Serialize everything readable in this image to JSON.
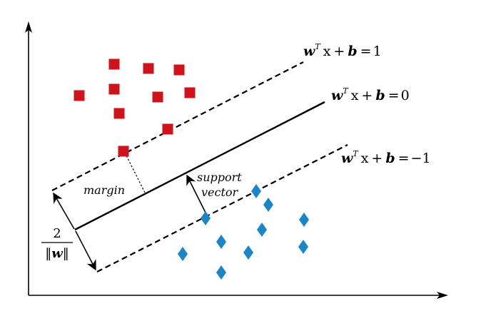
{
  "colors": {
    "class_positive": "#d0121b",
    "class_negative": "#1a86c8",
    "lines": "#000000"
  },
  "equations": {
    "upper": {
      "w": "w",
      "t": "T",
      "x": "x",
      "plus": "+",
      "b": "b",
      "eq": "=",
      "rhs": "1"
    },
    "middle": {
      "w": "w",
      "t": "T",
      "x": "x",
      "plus": "+",
      "b": "b",
      "eq": "=",
      "rhs": "0"
    },
    "lower": {
      "w": "w",
      "t": "T",
      "x": "x",
      "plus": "+",
      "b": "b",
      "eq": "=",
      "rhs": "−1"
    }
  },
  "labels": {
    "margin": "margin",
    "support_line1": "support",
    "support_line2": "vector",
    "frac_numerator": "2",
    "frac_denominator_open": "‖",
    "frac_denominator_w": "w",
    "frac_denominator_close": "‖"
  },
  "icons": {
    "positive_marker": "square",
    "negative_marker": "diamond"
  }
}
